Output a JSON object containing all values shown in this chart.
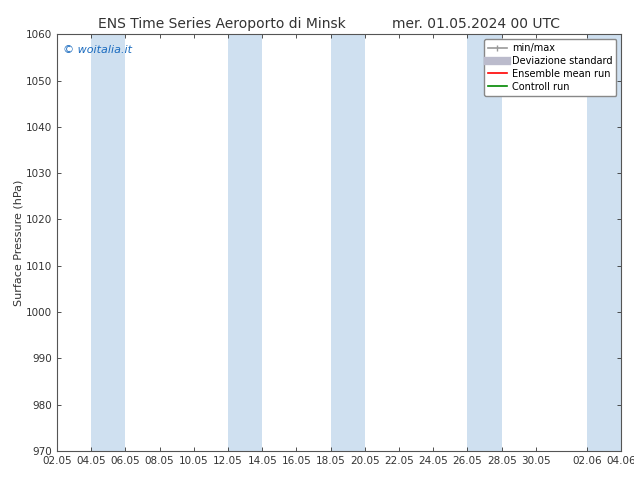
{
  "title_left": "ENS Time Series Aeroporto di Minsk",
  "title_right": "mer. 01.05.2024 00 UTC",
  "ylabel": "Surface Pressure (hPa)",
  "ylim": [
    970,
    1060
  ],
  "yticks": [
    970,
    980,
    990,
    1000,
    1010,
    1020,
    1030,
    1040,
    1050,
    1060
  ],
  "xtick_labels": [
    "02.05",
    "04.05",
    "06.05",
    "08.05",
    "10.05",
    "12.05",
    "14.05",
    "16.05",
    "18.05",
    "20.05",
    "22.05",
    "24.05",
    "26.05",
    "28.05",
    "30.05",
    "02.06",
    "04.06"
  ],
  "bg_color": "#ffffff",
  "band_color": "#cfe0f0",
  "band_alpha": 1.0,
  "watermark": "© woitalia.it",
  "watermark_color": "#1a6bbf",
  "legend_items": [
    {
      "label": "min/max",
      "color": "#999999",
      "lw": 1.2
    },
    {
      "label": "Deviazione standard",
      "color": "#bbbbcc",
      "lw": 6
    },
    {
      "label": "Ensemble mean run",
      "color": "#ff0000",
      "lw": 1.2
    },
    {
      "label": "Controll run",
      "color": "#008800",
      "lw": 1.2
    }
  ],
  "title_fontsize": 10,
  "ylabel_fontsize": 8,
  "tick_fontsize": 7.5,
  "watermark_fontsize": 8,
  "legend_fontsize": 7
}
